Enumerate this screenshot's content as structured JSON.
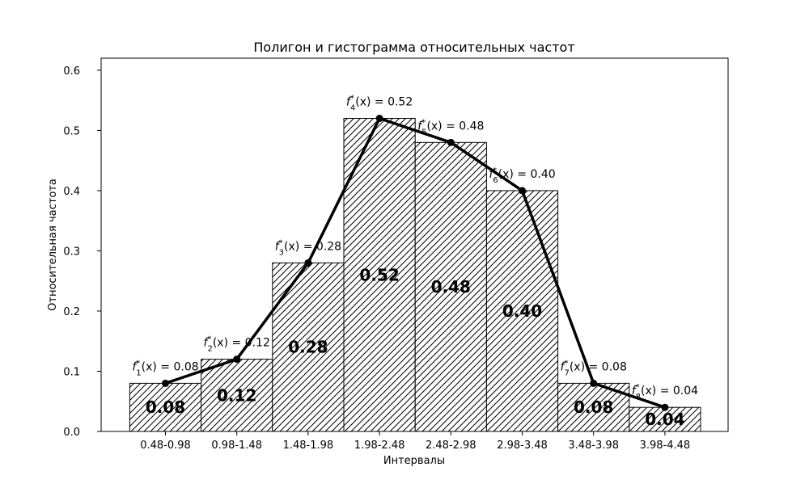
{
  "chart_data": {
    "type": "bar",
    "title": "Полигон и гистограмма относительных частот",
    "xlabel": "Интервалы",
    "ylabel": "Относительная частота",
    "categories": [
      "0.48-0.98",
      "0.98-1.48",
      "1.48-1.98",
      "1.98-2.48",
      "2.48-2.98",
      "2.98-3.48",
      "3.48-3.98",
      "3.98-4.48"
    ],
    "values": [
      0.08,
      0.12,
      0.28,
      0.52,
      0.48,
      0.4,
      0.08,
      0.04
    ],
    "bar_labels": [
      "0.08",
      "0.12",
      "0.28",
      "0.52",
      "0.48",
      "0.40",
      "0.08",
      "0.04"
    ],
    "point_labels": [
      {
        "index": "1",
        "value": "0.08"
      },
      {
        "index": "2",
        "value": "0.12"
      },
      {
        "index": "3",
        "value": "0.28"
      },
      {
        "index": "4",
        "value": "0.52"
      },
      {
        "index": "5",
        "value": "0.48"
      },
      {
        "index": "6",
        "value": "0.40"
      },
      {
        "index": "7",
        "value": "0.08"
      },
      {
        "index": "8",
        "value": "0.04"
      }
    ],
    "ylim": [
      0,
      0.62
    ],
    "yticks": [
      "0.0",
      "0.1",
      "0.2",
      "0.3",
      "0.4",
      "0.5",
      "0.6"
    ],
    "ytick_values": [
      0,
      0.1,
      0.2,
      0.3,
      0.4,
      0.5,
      0.6
    ],
    "bar_style": "hatched",
    "polygon": true,
    "grid": false,
    "colors": {
      "bar_edge": "#000000",
      "bar_fill": "#ffffff",
      "hatch": "#000000",
      "line": "#000000"
    }
  }
}
